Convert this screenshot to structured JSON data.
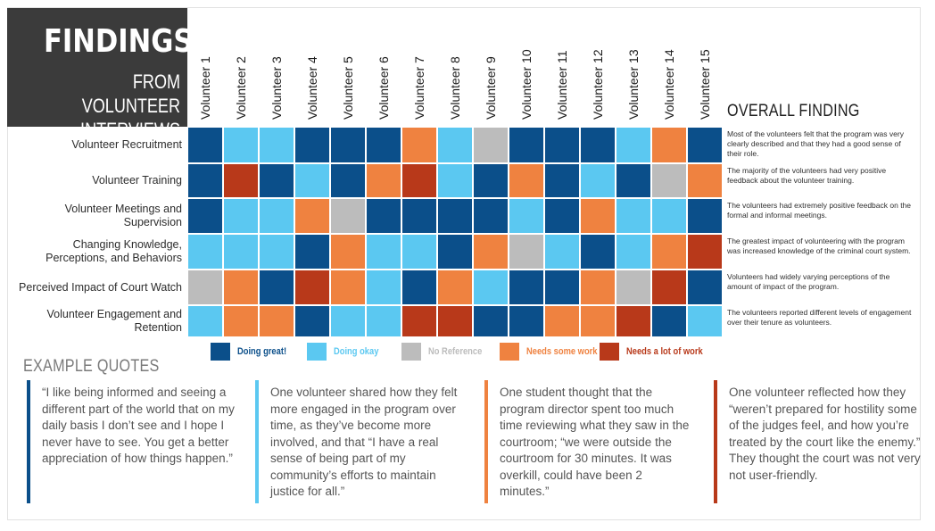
{
  "title": {
    "main": "FINDINGS",
    "line1": "FROM VOLUNTEER",
    "line2": "INTERVIEWS"
  },
  "overall_heading": "OVERALL FINDING",
  "quotes_heading": "EXAMPLE QUOTES",
  "colors": {
    "great": "#0b4f8a",
    "okay": "#5bc8f1",
    "none": "#bcbcbc",
    "some": "#ef8240",
    "lot": "#b8391a",
    "title_bg": "#3b3b3b"
  },
  "legend": [
    {
      "key": "great",
      "label": "Doing great!"
    },
    {
      "key": "okay",
      "label": "Doing okay"
    },
    {
      "key": "none",
      "label": "No Reference"
    },
    {
      "key": "some",
      "label": "Needs some work"
    },
    {
      "key": "lot",
      "label": "Needs a lot of work"
    }
  ],
  "chart_data": {
    "type": "heatmap",
    "columns": [
      "Volunteer 1",
      "Volunteer 2",
      "Volunteer 3",
      "Volunteer 4",
      "Volunteer 5",
      "Volunteer 6",
      "Volunteer 7",
      "Volunteer 8",
      "Volunteer 9",
      "Volunteer 10",
      "Volunteer 11",
      "Volunteer 12",
      "Volunteer 13",
      "Volunteer 14",
      "Volunteer 15"
    ],
    "rows": [
      {
        "lines": [
          "Volunteer Recruitment"
        ],
        "cells": [
          "great",
          "okay",
          "okay",
          "great",
          "great",
          "great",
          "some",
          "okay",
          "none",
          "great",
          "great",
          "great",
          "okay",
          "some",
          "great"
        ],
        "finding": "Most of the volunteers felt that the program was very clearly described and that they had a good sense of their role."
      },
      {
        "lines": [
          "Volunteer Training"
        ],
        "cells": [
          "great",
          "lot",
          "great",
          "okay",
          "great",
          "some",
          "lot",
          "okay",
          "great",
          "some",
          "great",
          "okay",
          "great",
          "none",
          "some"
        ],
        "finding": "The majority of the volunteers had very positive feedback about the volunteer training."
      },
      {
        "lines": [
          "Volunteer Meetings and",
          "Supervision"
        ],
        "cells": [
          "great",
          "okay",
          "okay",
          "some",
          "none",
          "great",
          "great",
          "great",
          "great",
          "okay",
          "great",
          "some",
          "okay",
          "okay",
          "great"
        ],
        "finding": "The volunteers had extremely positive feedback on the formal and informal meetings."
      },
      {
        "lines": [
          "Changing Knowledge,",
          "Perceptions, and Behaviors"
        ],
        "cells": [
          "okay",
          "okay",
          "okay",
          "great",
          "some",
          "okay",
          "okay",
          "great",
          "some",
          "none",
          "okay",
          "great",
          "okay",
          "some",
          "lot"
        ],
        "finding": "The greatest impact of volunteering with the program was increased knowledge of the criminal court system."
      },
      {
        "lines": [
          "Perceived Impact of Court Watch"
        ],
        "cells": [
          "none",
          "some",
          "great",
          "lot",
          "some",
          "okay",
          "great",
          "some",
          "okay",
          "great",
          "great",
          "some",
          "none",
          "lot",
          "great"
        ],
        "finding": "Volunteers had widely varying perceptions of the amount of impact of the program."
      },
      {
        "lines": [
          "Volunteer Engagement and",
          "Retention"
        ],
        "cells": [
          "okay",
          "some",
          "some",
          "great",
          "okay",
          "okay",
          "lot",
          "lot",
          "great",
          "great",
          "some",
          "some",
          "lot",
          "great",
          "okay"
        ],
        "finding": "The volunteers reported different levels of engagement over their tenure as volunteers."
      }
    ]
  },
  "quotes": [
    {
      "color": "great",
      "text": "“I like being informed and seeing a different part of the world that on my daily basis I don’t see and I hope I never have to see. You get a better appreciation of how things happen.”"
    },
    {
      "color": "okay",
      "text": "One volunteer shared how they felt more engaged in the program over time, as they’ve become more involved, and that “I have a real sense of being part of my community’s efforts to maintain justice for all.”"
    },
    {
      "color": "some",
      "text": "One student thought that the program director spent too much time reviewing what they saw in the courtroom; “we were outside the courtroom for 30 minutes. It was overkill, could have been 2 minutes.”"
    },
    {
      "color": "lot",
      "text": "One volunteer reflected how they “weren’t prepared for hostility some of the judges feel, and how you’re treated by the court like the enemy.” They thought the court was not very not user-friendly."
    }
  ]
}
